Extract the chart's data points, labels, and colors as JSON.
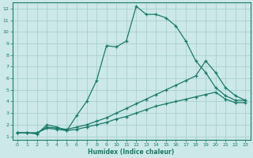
{
  "xlabel": "Humidex (Indice chaleur)",
  "bg_color": "#cce8e8",
  "line_color": "#1a7a6a",
  "grid_color": "#aacfcf",
  "xlim": [
    -0.5,
    23.5
  ],
  "ylim": [
    0.7,
    12.5
  ],
  "xticks": [
    0,
    1,
    2,
    3,
    4,
    5,
    6,
    7,
    8,
    9,
    10,
    11,
    12,
    13,
    14,
    15,
    16,
    17,
    18,
    19,
    20,
    21,
    22,
    23
  ],
  "yticks": [
    1,
    2,
    3,
    4,
    5,
    6,
    7,
    8,
    9,
    10,
    11,
    12
  ],
  "line1_x": [
    0,
    1,
    2,
    3,
    4,
    5,
    6,
    7,
    8,
    9,
    10,
    11,
    12,
    13,
    14,
    15,
    16,
    17,
    18,
    19,
    20,
    21,
    22,
    23
  ],
  "line1_y": [
    1.3,
    1.3,
    1.2,
    2.0,
    1.8,
    1.5,
    2.8,
    4.0,
    5.8,
    8.8,
    8.7,
    9.2,
    12.2,
    11.5,
    11.5,
    11.2,
    10.5,
    9.2,
    7.5,
    6.5,
    5.2,
    4.5,
    4.1,
    4.1
  ],
  "line2_x": [
    0,
    1,
    2,
    3,
    4,
    5,
    6,
    7,
    8,
    9,
    10,
    11,
    12,
    13,
    14,
    15,
    16,
    17,
    18,
    19,
    20,
    21,
    22,
    23
  ],
  "line2_y": [
    1.3,
    1.3,
    1.3,
    1.8,
    1.7,
    1.6,
    1.8,
    2.0,
    2.3,
    2.6,
    3.0,
    3.4,
    3.8,
    4.2,
    4.6,
    5.0,
    5.4,
    5.8,
    6.2,
    7.5,
    6.5,
    5.2,
    4.5,
    4.1
  ],
  "line3_x": [
    0,
    1,
    2,
    3,
    4,
    5,
    6,
    7,
    8,
    9,
    10,
    11,
    12,
    13,
    14,
    15,
    16,
    17,
    18,
    19,
    20,
    21,
    22,
    23
  ],
  "line3_y": [
    1.3,
    1.3,
    1.3,
    1.7,
    1.6,
    1.5,
    1.6,
    1.8,
    2.0,
    2.2,
    2.5,
    2.7,
    3.0,
    3.3,
    3.6,
    3.8,
    4.0,
    4.2,
    4.4,
    4.6,
    4.8,
    4.2,
    3.9,
    3.9
  ]
}
